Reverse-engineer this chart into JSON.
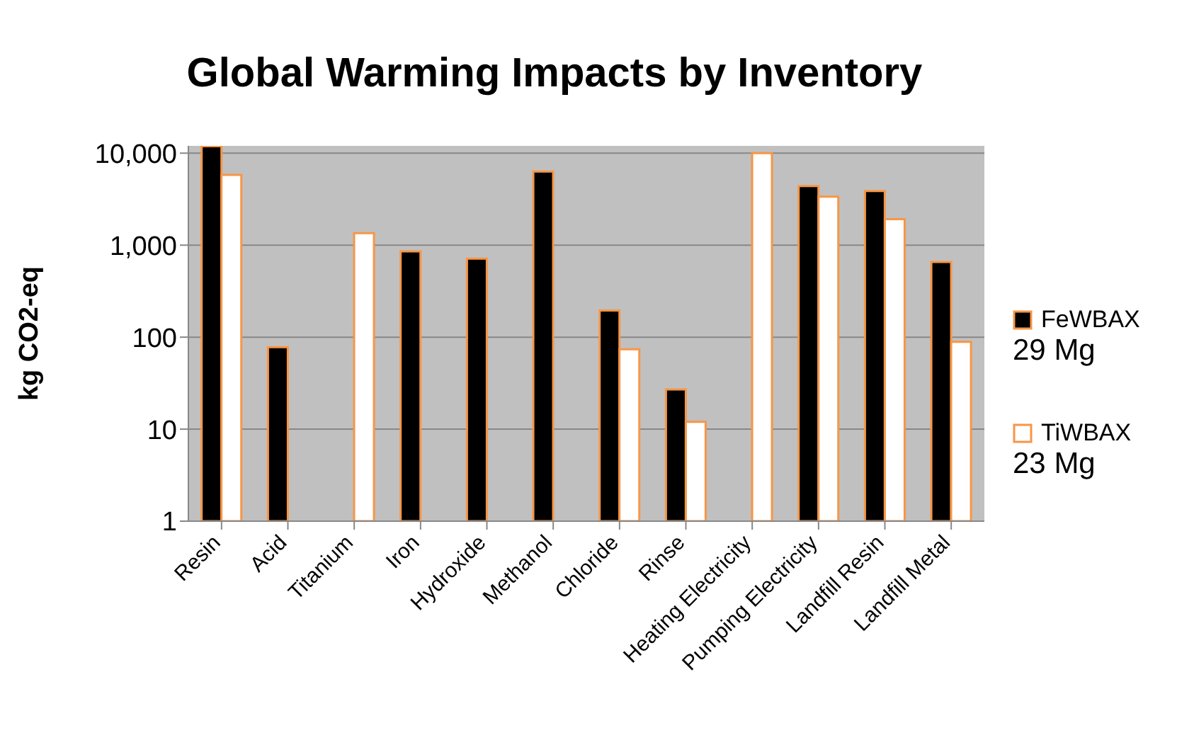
{
  "chart_data": {
    "type": "bar",
    "title": "Global Warming Impacts by Inventory",
    "ylabel": "kg CO2-eq",
    "categories": [
      "Resin",
      "Acid",
      "Titanium",
      "Iron",
      "Hydroxide",
      "Methanol",
      "Chloride",
      "Rinse",
      "Heating Electricity",
      "Pumping Electricity",
      "Landfill Resin",
      "Landfill Metal"
    ],
    "series": [
      {
        "name": "FeWBAX\n29 Mg",
        "color": "#000000",
        "values": [
          11900,
          78,
          null,
          855,
          713,
          6300,
          195,
          27,
          null,
          4390,
          3880,
          655
        ]
      },
      {
        "name": "TiWBAX\n23 Mg",
        "color": "#ffffff",
        "values": [
          5800,
          null,
          1350,
          null,
          null,
          null,
          74,
          12,
          10000,
          3360,
          1920,
          89
        ]
      }
    ],
    "log": true,
    "ylim": [
      1,
      12000
    ],
    "yticks": [
      1,
      10,
      100,
      {
        "value": 1000,
        "label": "1,000"
      },
      {
        "value": 10000,
        "label": "10,000"
      }
    ],
    "grid": "y",
    "legend": "right"
  }
}
